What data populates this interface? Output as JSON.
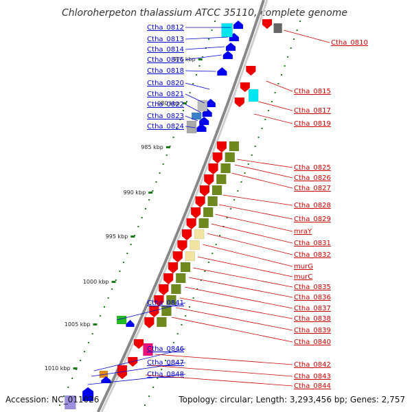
{
  "title": "Chloroherpeton thalassium ATCC 35110, complete genome",
  "footer": {
    "accession": "Accession: NC_011026",
    "topology": "Topology: circular; Length: 3,293,456 bp; Genes: 2,757"
  },
  "colors": {
    "left_label": "#0000cc",
    "right_label": "#cc0000",
    "backbone": "#999999",
    "tick": "#1a7a1a"
  },
  "scale_ticks": [
    "975 kbp",
    "980 kbp",
    "985 kbp",
    "990 kbp",
    "995 kbp",
    "1000 kbp",
    "1005 kbp",
    "1010 kbp"
  ],
  "left_labels": [
    "Ctha_0812",
    "Ctha_0813",
    "Ctha_0814",
    "Ctha_0816",
    "Ctha_0818",
    "Ctha_0820",
    "Ctha_0821",
    "Ctha_0822",
    "Ctha_0823",
    "Ctha_0824",
    "Ctha_0841",
    "Ctha_0846",
    "Ctha_0847",
    "Ctha_0848"
  ],
  "right_labels": [
    "Ctha_0810",
    "Ctha_0815",
    "Ctha_0817",
    "Ctha_0819",
    "Ctha_0825",
    "Ctha_0826",
    "Ctha_0827",
    "Ctha_0828",
    "Ctha_0829",
    "mraY",
    "Ctha_0831",
    "Ctha_0832",
    "murG",
    "murC",
    "Ctha_0835",
    "Ctha_0836",
    "Ctha_0837",
    "Ctha_0838",
    "Ctha_0839",
    "Ctha_0840",
    "Ctha_0842",
    "Ctha_0843",
    "Ctha_0844"
  ]
}
